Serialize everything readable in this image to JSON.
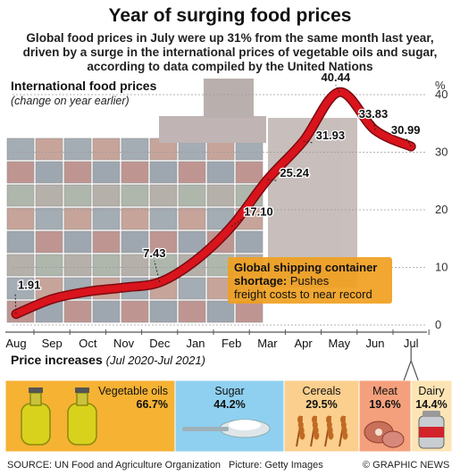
{
  "header": {
    "title": "Year of surging food prices",
    "subtitle": "Global food prices in July were up 31% from the same month last year, driven by a surge in the international prices of vegetable oils and sugar, according to data compiled by the United Nations"
  },
  "chart_data": {
    "type": "line",
    "title": "International food prices",
    "subtitle": "(change on year earlier)",
    "unit_label": "%",
    "categories": [
      "Aug",
      "Sep",
      "Oct",
      "Nov",
      "Dec",
      "Jan",
      "Feb",
      "Mar",
      "Apr",
      "May",
      "Jun",
      "Jul"
    ],
    "values": [
      1.91,
      4.5,
      5.8,
      6.5,
      7.43,
      11.2,
      17.1,
      25.24,
      31.93,
      40.44,
      33.83,
      30.99
    ],
    "data_labels": [
      {
        "index": 0,
        "text": "1.91"
      },
      {
        "index": 4,
        "text": "7.43"
      },
      {
        "index": 6,
        "text": "17.10"
      },
      {
        "index": 7,
        "text": "25.24"
      },
      {
        "index": 8,
        "text": "31.93"
      },
      {
        "index": 9,
        "text": "40.44"
      },
      {
        "index": 10,
        "text": "33.83"
      },
      {
        "index": 11,
        "text": "30.99"
      }
    ],
    "yticks": [
      0,
      10,
      20,
      30,
      40
    ],
    "ylim": [
      0,
      42
    ],
    "grid": true,
    "annotation": {
      "bold": "Global shipping container shortage:",
      "rest": "Pushes freight costs to near record highs"
    },
    "colors": {
      "line": "#d9141c",
      "axis": "#555555",
      "grid": "#9a9a9a",
      "annotation_bg": "#f0a020"
    }
  },
  "price_increases": {
    "title": "Price increases",
    "period": "(Jul 2020-Jul 2021)",
    "items": [
      {
        "label": "Vegetable oils",
        "value": "66.7%",
        "icon": "oil-bottles-icon",
        "color": "#f6b233",
        "share": 66.7
      },
      {
        "label": "Sugar",
        "value": "44.2%",
        "icon": "sugar-spoon-icon",
        "color": "#8fd0f0",
        "share": 44.2
      },
      {
        "label": "Cereals",
        "value": "29.5%",
        "icon": "wheat-icon",
        "color": "#fbcf8d",
        "share": 29.5
      },
      {
        "label": "Meat",
        "value": "19.6%",
        "icon": "meat-icon",
        "color": "#f5a07c",
        "share": 19.6
      },
      {
        "label": "Dairy",
        "value": "14.4%",
        "icon": "milk-can-icon",
        "color": "#fde4b4",
        "share": 14.4
      }
    ]
  },
  "footer": {
    "source": "SOURCE: UN Food and Agriculture Organization",
    "picture": "Picture: Getty Images",
    "credit": "© GRAPHIC NEWS"
  }
}
